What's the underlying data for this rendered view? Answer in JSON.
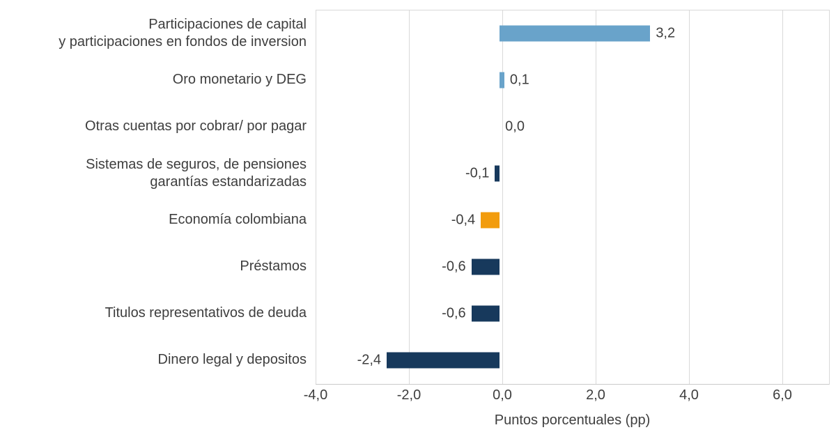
{
  "chart_data": {
    "type": "bar",
    "orientation": "horizontal",
    "title": "",
    "xlabel": "Puntos porcentuales (pp)",
    "xlim": [
      -4,
      7
    ],
    "xticks": [
      -4,
      -2,
      0,
      2,
      4,
      6
    ],
    "xtick_labels": [
      "-4,0",
      "-2,0",
      "0,0",
      "2,0",
      "4,0",
      "6,0"
    ],
    "grid": "vertical",
    "legend": "none",
    "categories": [
      "Participaciones de capital y participaciones en fondos de inversion",
      "Oro monetario y DEG",
      "Otras cuentas por cobrar/ por pagar",
      "Sistemas de seguros, de pensiones garantías estandarizadas",
      "Economía colombiana",
      "Préstamos",
      "Titulos representativos de deuda",
      "Dinero legal y depositos"
    ],
    "points": [
      {
        "category_lines": [
          "Participaciones de capital",
          "y participaciones en fondos de inversion"
        ],
        "value": 3.2,
        "label": "3,2",
        "color": "light_blue"
      },
      {
        "category_lines": [
          "Oro monetario y DEG"
        ],
        "value": 0.1,
        "label": "0,1",
        "color": "light_blue"
      },
      {
        "category_lines": [
          "Otras cuentas por cobrar/ por pagar"
        ],
        "value": 0.0,
        "label": "0,0",
        "color": "navy"
      },
      {
        "category_lines": [
          "Sistemas de seguros, de pensiones",
          "garantías estandarizadas"
        ],
        "value": -0.1,
        "label": "-0,1",
        "color": "navy"
      },
      {
        "category_lines": [
          "Economía colombiana"
        ],
        "value": -0.4,
        "label": "-0,4",
        "color": "orange"
      },
      {
        "category_lines": [
          "Préstamos"
        ],
        "value": -0.6,
        "label": "-0,6",
        "color": "navy"
      },
      {
        "category_lines": [
          "Titulos representativos de deuda"
        ],
        "value": -0.6,
        "label": "-0,6",
        "color": "navy"
      },
      {
        "category_lines": [
          "Dinero legal y depositos"
        ],
        "value": -2.4,
        "label": "-2,4",
        "color": "navy"
      }
    ],
    "palette": {
      "light_blue": "#69a3ca",
      "navy": "#17395c",
      "orange": "#f29c0d"
    },
    "colors": {
      "text": "#3e3e3e",
      "grid": "#d9d9d9",
      "axis_line": "#c9c9c9",
      "background": "#ffffff"
    }
  }
}
